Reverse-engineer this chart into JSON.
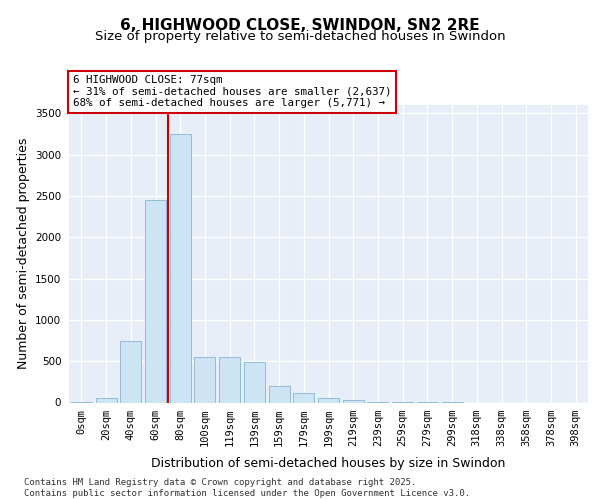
{
  "title_line1": "6, HIGHWOOD CLOSE, SWINDON, SN2 2RE",
  "title_line2": "Size of property relative to semi-detached houses in Swindon",
  "xlabel": "Distribution of semi-detached houses by size in Swindon",
  "ylabel": "Number of semi-detached properties",
  "categories": [
    "0sqm",
    "20sqm",
    "40sqm",
    "60sqm",
    "80sqm",
    "100sqm",
    "119sqm",
    "139sqm",
    "159sqm",
    "179sqm",
    "199sqm",
    "219sqm",
    "239sqm",
    "259sqm",
    "279sqm",
    "299sqm",
    "318sqm",
    "338sqm",
    "358sqm",
    "378sqm",
    "398sqm"
  ],
  "values": [
    5,
    52,
    750,
    2450,
    3250,
    550,
    550,
    490,
    200,
    110,
    58,
    30,
    8,
    3,
    2,
    1,
    0,
    0,
    0,
    0,
    0
  ],
  "bar_color": "#cde4f5",
  "bar_edge_color": "#8ab5d0",
  "vline_color": "#cc0000",
  "vline_x": 3.5,
  "annotation_text": "6 HIGHWOOD CLOSE: 77sqm\n← 31% of semi-detached houses are smaller (2,637)\n68% of semi-detached houses are larger (5,771) →",
  "annotation_box_facecolor": "#ffffff",
  "annotation_box_edgecolor": "#cc0000",
  "ylim": [
    0,
    3600
  ],
  "yticks": [
    0,
    500,
    1000,
    1500,
    2000,
    2500,
    3000,
    3500
  ],
  "footer_text": "Contains HM Land Registry data © Crown copyright and database right 2025.\nContains public sector information licensed under the Open Government Licence v3.0.",
  "bg_color": "#e8eef8",
  "grid_color": "#ffffff",
  "title_fontsize": 11,
  "subtitle_fontsize": 9.5,
  "tick_fontsize": 7.5,
  "label_fontsize": 9,
  "footer_fontsize": 6.5,
  "ann_fontsize": 7.8
}
